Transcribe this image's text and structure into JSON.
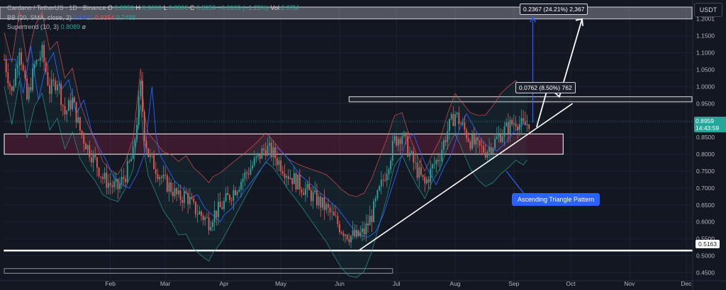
{
  "header": {
    "symbol": "Cardano / TetherUS · 1D · Binance",
    "ohlc_labels": [
      "O",
      "H",
      "L",
      "C"
    ],
    "ohlc_values": [
      "0.8959",
      "0.9000",
      "0.8800",
      "0.8959"
    ],
    "change": "+0.0109 (+1.23%)",
    "vol_label": "Vol",
    "vol_value": "2.37M",
    "bb_label": "BB (20, SMA, close, 2)",
    "bb_values": [
      "0.8421",
      "0.9354",
      "0.7488"
    ],
    "supertrend_label": "Supertrend (10, 3)",
    "supertrend_value": "0.8089",
    "supertrend_extra": "ø"
  },
  "currency_button": "USDT",
  "colors": {
    "background": "#131722",
    "up": "#26a69a",
    "down": "#ef5350",
    "bb_basis": "#2962ff",
    "callout": "#2962ff",
    "price_tag": "#26a69a"
  },
  "chart_data": {
    "type": "candlestick",
    "y_axis": {
      "ticks": [
        "1.2001",
        "1.1500",
        "1.1000",
        "1.0500",
        "1.0000",
        "0.9500",
        "0.9000",
        "0.8500",
        "0.8000",
        "0.7500",
        "0.7000",
        "0.6500",
        "0.6000",
        "0.5500",
        "0.5000",
        "0.4500"
      ],
      "range": [
        0.43,
        1.235
      ]
    },
    "x_axis": {
      "ticks": [
        "Feb",
        "Mar",
        "Apr",
        "May",
        "Jun",
        "Jul",
        "Aug",
        "Sep",
        "Oct",
        "Nov",
        "Dec"
      ]
    },
    "last_price": "0.8959",
    "countdown": "14:43:59",
    "support_label": "0.5163",
    "measurements": {
      "upper": "0.2367 (24.21%) 2,367",
      "lower": "0.0762 (8.50%) 762"
    },
    "annotation": "Ascending Triangle Pattern",
    "zones": [
      {
        "name": "resistance",
        "low": 0.955,
        "high": 0.97
      },
      {
        "name": "range",
        "low": 0.8,
        "high": 0.86
      },
      {
        "name": "support",
        "low": 0.5163,
        "high": 0.5163
      },
      {
        "name": "target",
        "low": 1.2,
        "high": 1.235
      }
    ],
    "price_path": [
      [
        0,
        1.08
      ],
      [
        4,
        0.98
      ],
      [
        8,
        1.12
      ],
      [
        12,
        0.96
      ],
      [
        16,
        1.06
      ],
      [
        20,
        1.1
      ],
      [
        24,
        0.99
      ],
      [
        28,
        1.02
      ],
      [
        32,
        0.92
      ],
      [
        36,
        0.96
      ],
      [
        40,
        0.87
      ],
      [
        44,
        0.82
      ],
      [
        48,
        0.78
      ],
      [
        52,
        0.73
      ],
      [
        56,
        0.71
      ],
      [
        60,
        0.7
      ],
      [
        64,
        0.74
      ],
      [
        68,
        0.8
      ],
      [
        72,
        1.0
      ],
      [
        74,
        0.86
      ],
      [
        76,
        0.8
      ],
      [
        80,
        0.76
      ],
      [
        84,
        0.72
      ],
      [
        88,
        0.7
      ],
      [
        92,
        0.67
      ],
      [
        96,
        0.68
      ],
      [
        100,
        0.64
      ],
      [
        104,
        0.62
      ],
      [
        108,
        0.6
      ],
      [
        110,
        0.62
      ],
      [
        114,
        0.64
      ],
      [
        118,
        0.67
      ],
      [
        122,
        0.7
      ],
      [
        126,
        0.73
      ],
      [
        130,
        0.76
      ],
      [
        134,
        0.79
      ],
      [
        138,
        0.82
      ],
      [
        142,
        0.8
      ],
      [
        146,
        0.77
      ],
      [
        150,
        0.74
      ],
      [
        154,
        0.72
      ],
      [
        158,
        0.7
      ],
      [
        162,
        0.68
      ],
      [
        166,
        0.66
      ],
      [
        170,
        0.64
      ],
      [
        174,
        0.61
      ],
      [
        178,
        0.58
      ],
      [
        182,
        0.56
      ],
      [
        186,
        0.555
      ],
      [
        190,
        0.57
      ],
      [
        194,
        0.62
      ],
      [
        198,
        0.69
      ],
      [
        202,
        0.76
      ],
      [
        206,
        0.84
      ],
      [
        210,
        0.86
      ],
      [
        214,
        0.8
      ],
      [
        218,
        0.75
      ],
      [
        222,
        0.71
      ],
      [
        226,
        0.76
      ],
      [
        230,
        0.8
      ],
      [
        234,
        0.87
      ],
      [
        238,
        0.92
      ],
      [
        242,
        0.88
      ],
      [
        246,
        0.84
      ],
      [
        250,
        0.82
      ],
      [
        254,
        0.81
      ],
      [
        258,
        0.83
      ],
      [
        262,
        0.86
      ],
      [
        266,
        0.88
      ],
      [
        270,
        0.9
      ],
      [
        274,
        0.88
      ],
      [
        277,
        0.8959
      ]
    ],
    "candle_days": 278,
    "future_days": 85
  }
}
